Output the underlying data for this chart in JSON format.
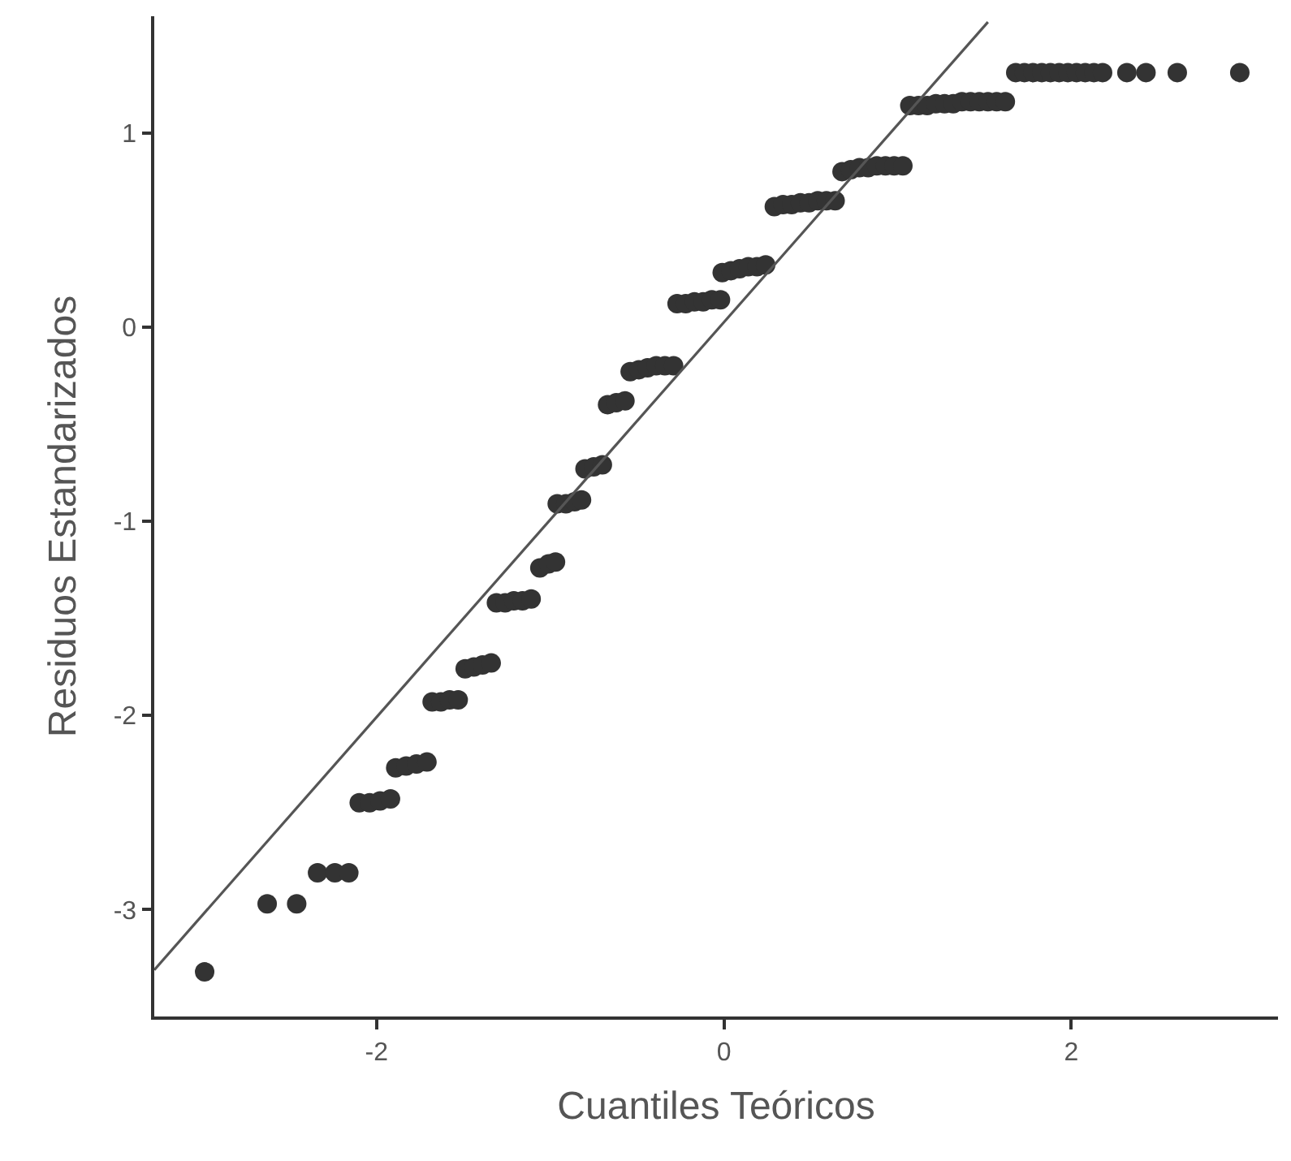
{
  "chart_data": {
    "type": "scatter",
    "xlabel": "Cuantiles Teóricos",
    "ylabel": "Residuos Estandarizados",
    "xlim": [
      -3.28,
      3.19
    ],
    "ylim": [
      -3.55,
      1.6
    ],
    "xticks": [
      -2,
      0,
      2
    ],
    "yticks": [
      -3,
      -2,
      -1,
      0,
      1
    ],
    "grid": false,
    "series": [
      {
        "marker": "circle",
        "color": "#333333",
        "x": [
          -2.99,
          -2.63,
          -2.46,
          -2.34,
          -2.24,
          -2.16,
          -2.1,
          -2.04,
          -1.98,
          -1.92,
          -1.89,
          -1.83,
          -1.77,
          -1.71,
          -1.68,
          -1.63,
          -1.58,
          -1.53,
          -1.49,
          -1.44,
          -1.39,
          -1.34,
          -1.31,
          -1.26,
          -1.21,
          -1.16,
          -1.11,
          -1.06,
          -1.01,
          -0.97,
          -0.96,
          -0.91,
          -0.86,
          -0.82,
          -0.8,
          -0.75,
          -0.7,
          -0.67,
          -0.62,
          -0.57,
          -0.54,
          -0.49,
          -0.44,
          -0.39,
          -0.34,
          -0.29,
          -0.27,
          -0.22,
          -0.17,
          -0.12,
          -0.07,
          -0.02,
          -0.01,
          0.04,
          0.09,
          0.14,
          0.19,
          0.24,
          0.29,
          0.34,
          0.39,
          0.44,
          0.49,
          0.54,
          0.59,
          0.64,
          0.68,
          0.73,
          0.78,
          0.83,
          0.88,
          0.93,
          0.98,
          1.03,
          1.07,
          1.12,
          1.17,
          1.22,
          1.27,
          1.32,
          1.37,
          1.42,
          1.47,
          1.52,
          1.57,
          1.62,
          1.68,
          1.73,
          1.78,
          1.83,
          1.88,
          1.93,
          1.98,
          2.03,
          2.08,
          2.13,
          2.18,
          2.32,
          2.43,
          2.61,
          2.97
        ],
        "values": [
          -3.32,
          -2.97,
          -2.97,
          -2.81,
          -2.81,
          -2.81,
          -2.45,
          -2.45,
          -2.44,
          -2.43,
          -2.27,
          -2.26,
          -2.25,
          -2.24,
          -1.93,
          -1.93,
          -1.92,
          -1.92,
          -1.76,
          -1.75,
          -1.74,
          -1.73,
          -1.42,
          -1.42,
          -1.41,
          -1.41,
          -1.4,
          -1.24,
          -1.22,
          -1.21,
          -0.91,
          -0.91,
          -0.9,
          -0.89,
          -0.73,
          -0.72,
          -0.71,
          -0.4,
          -0.39,
          -0.38,
          -0.23,
          -0.22,
          -0.21,
          -0.2,
          -0.2,
          -0.2,
          0.12,
          0.12,
          0.13,
          0.13,
          0.14,
          0.14,
          0.28,
          0.29,
          0.3,
          0.31,
          0.31,
          0.32,
          0.62,
          0.63,
          0.63,
          0.64,
          0.64,
          0.65,
          0.65,
          0.65,
          0.8,
          0.81,
          0.82,
          0.82,
          0.83,
          0.83,
          0.83,
          0.83,
          1.14,
          1.14,
          1.14,
          1.15,
          1.15,
          1.15,
          1.16,
          1.16,
          1.16,
          1.16,
          1.16,
          1.16,
          1.31,
          1.31,
          1.31,
          1.31,
          1.31,
          1.31,
          1.31,
          1.31,
          1.31,
          1.31,
          1.31,
          1.31,
          1.31,
          1.31,
          1.31
        ]
      },
      {
        "type": "line",
        "color": "#555555",
        "line_style": "solid",
        "x": [
          -3.28,
          1.52
        ],
        "values": [
          -3.31,
          1.57
        ]
      }
    ]
  }
}
